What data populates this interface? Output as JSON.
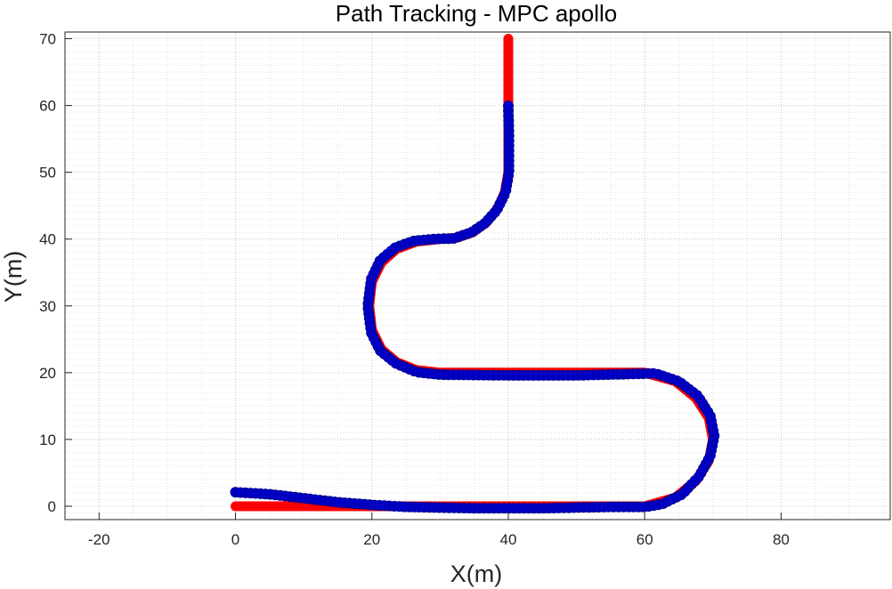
{
  "chart_data": {
    "type": "line",
    "title": "Path Tracking - MPC apollo",
    "xlabel": "X(m)",
    "ylabel": "Y(m)",
    "xlim": [
      -25,
      96
    ],
    "ylim": [
      -2,
      71
    ],
    "xticks": [
      -20,
      0,
      20,
      40,
      60,
      80
    ],
    "yticks": [
      0,
      10,
      20,
      30,
      40,
      50,
      60,
      70
    ],
    "grid": "major and minor, dotted",
    "series": [
      {
        "color": "#ff0000",
        "style": "thick line",
        "points": [
          [
            0,
            0
          ],
          [
            60,
            0
          ],
          [
            64.5,
            1.3
          ],
          [
            67.5,
            3.8
          ],
          [
            69.4,
            6.8
          ],
          [
            70,
            10
          ],
          [
            69.4,
            13.2
          ],
          [
            67.5,
            16.2
          ],
          [
            64.5,
            18.7
          ],
          [
            60,
            20
          ],
          [
            30,
            20
          ],
          [
            26.5,
            20.4
          ],
          [
            23.6,
            21.6
          ],
          [
            21.4,
            23.5
          ],
          [
            20,
            26.4
          ],
          [
            19.6,
            30
          ],
          [
            20,
            33.6
          ],
          [
            21.4,
            36.5
          ],
          [
            23.6,
            38.5
          ],
          [
            26.5,
            39.6
          ],
          [
            30,
            40
          ],
          [
            32.5,
            40.2
          ],
          [
            34.8,
            41
          ],
          [
            36.8,
            42.5
          ],
          [
            38.4,
            44.5
          ],
          [
            39.5,
            47
          ],
          [
            40,
            50
          ],
          [
            40,
            70
          ]
        ]
      },
      {
        "color": "#0000cc",
        "style": "circle markers",
        "points": [
          [
            0,
            2.1
          ],
          [
            5,
            1.8
          ],
          [
            10,
            1.2
          ],
          [
            15,
            0.6
          ],
          [
            20,
            0.2
          ],
          [
            25,
            -0.1
          ],
          [
            30,
            -0.2
          ],
          [
            35,
            -0.3
          ],
          [
            40,
            -0.3
          ],
          [
            45,
            -0.3
          ],
          [
            50,
            -0.2
          ],
          [
            55,
            -0.1
          ],
          [
            60,
            -0.1
          ],
          [
            62.5,
            0.3
          ],
          [
            65.5,
            1.8
          ],
          [
            68,
            4.5
          ],
          [
            69.6,
            7.5
          ],
          [
            70.2,
            10.5
          ],
          [
            69.6,
            13.6
          ],
          [
            67.8,
            16.5
          ],
          [
            65,
            18.7
          ],
          [
            61.5,
            19.9
          ],
          [
            58,
            19.8
          ],
          [
            50,
            19.6
          ],
          [
            40,
            19.6
          ],
          [
            30,
            19.7
          ],
          [
            26.5,
            20.1
          ],
          [
            23.5,
            21.4
          ],
          [
            21.2,
            23.3
          ],
          [
            19.9,
            26
          ],
          [
            19.4,
            30
          ],
          [
            19.9,
            34
          ],
          [
            21.2,
            36.8
          ],
          [
            23.4,
            38.7
          ],
          [
            26,
            39.7
          ],
          [
            29,
            40
          ],
          [
            32,
            40.1
          ],
          [
            34.6,
            41
          ],
          [
            36.6,
            42.4
          ],
          [
            38.3,
            44.3
          ],
          [
            39.6,
            47
          ],
          [
            40.1,
            50
          ],
          [
            40.1,
            55
          ],
          [
            40,
            60.3
          ]
        ]
      }
    ]
  }
}
